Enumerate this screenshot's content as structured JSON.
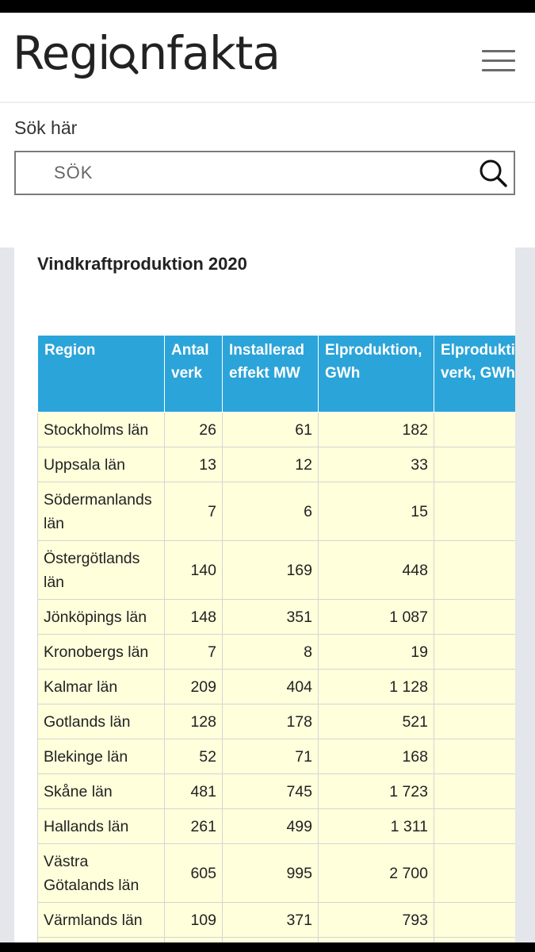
{
  "header": {
    "logo_text_pre": "Regi",
    "logo_text_post": "nfakta",
    "menu_icon": "hamburger-menu-icon"
  },
  "search": {
    "label": "Sök här",
    "placeholder": "SÖK",
    "icon": "search-icon"
  },
  "main": {
    "title": "Vindkraftproduktion 2020",
    "table": {
      "columns": [
        "Region",
        "Antal verk",
        "Installerad effekt MW",
        "Elproduktion, GWh",
        "Elproduktion per verk, GWh"
      ],
      "rows": [
        {
          "region": "Stockholms län",
          "antal": "26",
          "effekt": "61",
          "elprod": "182",
          "per_verk": ""
        },
        {
          "region": "Uppsala län",
          "antal": "13",
          "effekt": "12",
          "elprod": "33",
          "per_verk": ""
        },
        {
          "region": "Södermanlands län",
          "antal": "7",
          "effekt": "6",
          "elprod": "15",
          "per_verk": ""
        },
        {
          "region": "Östergötlands län",
          "antal": "140",
          "effekt": "169",
          "elprod": "448",
          "per_verk": ""
        },
        {
          "region": "Jönköpings län",
          "antal": "148",
          "effekt": "351",
          "elprod": "1 087",
          "per_verk": ""
        },
        {
          "region": "Kronobergs län",
          "antal": "7",
          "effekt": "8",
          "elprod": "19",
          "per_verk": ""
        },
        {
          "region": "Kalmar län",
          "antal": "209",
          "effekt": "404",
          "elprod": "1 128",
          "per_verk": ""
        },
        {
          "region": "Gotlands län",
          "antal": "128",
          "effekt": "178",
          "elprod": "521",
          "per_verk": ""
        },
        {
          "region": "Blekinge län",
          "antal": "52",
          "effekt": "71",
          "elprod": "168",
          "per_verk": ""
        },
        {
          "region": "Skåne län",
          "antal": "481",
          "effekt": "745",
          "elprod": "1 723",
          "per_verk": ""
        },
        {
          "region": "Hallands län",
          "antal": "261",
          "effekt": "499",
          "elprod": "1 311",
          "per_verk": ""
        },
        {
          "region": "Västra Götalands län",
          "antal": "605",
          "effekt": "995",
          "elprod": "2 700",
          "per_verk": ""
        },
        {
          "region": "Värmlands län",
          "antal": "109",
          "effekt": "371",
          "elprod": "793",
          "per_verk": ""
        }
      ]
    }
  },
  "colors": {
    "header_bg": "#2ba4d9",
    "cell_bg": "#ffffdc",
    "page_side_bg": "#e3e6ea"
  }
}
